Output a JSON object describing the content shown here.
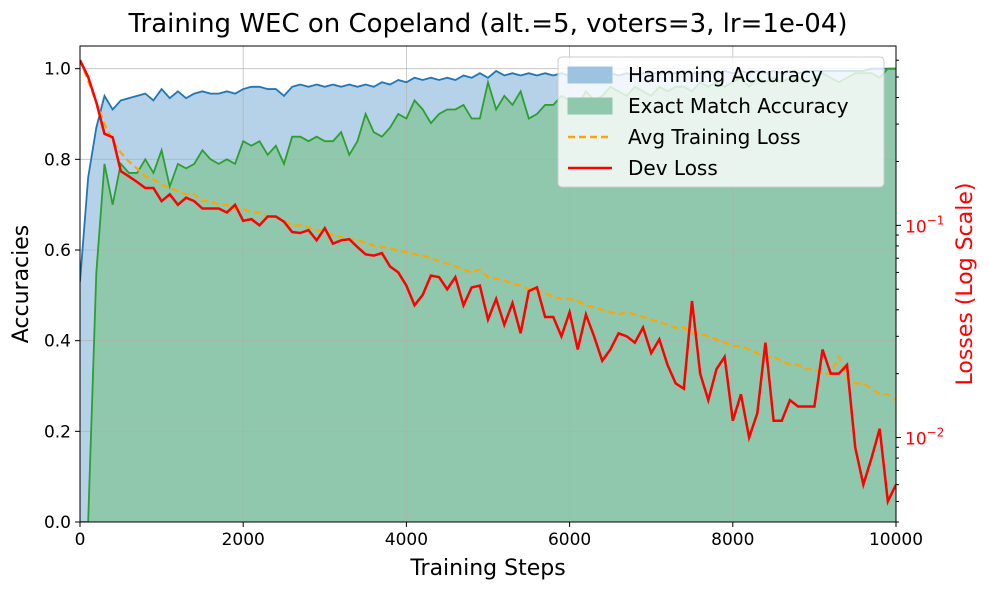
{
  "chart_data": {
    "type": "line",
    "title": "Training WEC on Copeland (alt.=5, voters=3, lr=1e-04)",
    "xlabel": "Training Steps",
    "ylabel": "Accuracies",
    "ylabel_right": "Losses (Log Scale)",
    "xlim": [
      0,
      10000
    ],
    "ylim": [
      0,
      1.05
    ],
    "ylim_right": [
      0.004,
      0.7
    ],
    "y_right_scale": "log",
    "grid": true,
    "legend_position": "top-right",
    "x_ticks": [
      "0",
      "2000",
      "4000",
      "6000",
      "8000",
      "10000"
    ],
    "y_ticks": [
      "0.0",
      "0.2",
      "0.4",
      "0.6",
      "0.8",
      "1.0"
    ],
    "y_right_ticks": [
      {
        "value": 0.1,
        "base": "10",
        "exp": "−1"
      },
      {
        "value": 0.01,
        "base": "10",
        "exp": "−2"
      }
    ],
    "colors": {
      "hamming_line": "#1f77b4",
      "hamming_fill": "#9ec3e0",
      "exact_line": "#2ca02c",
      "exact_fill": "#8fc8ac",
      "train_loss": "#ffa500",
      "dev_loss": "#ff0000",
      "grid": "#b0b0b0",
      "right_axis": "#ff0000"
    },
    "series": [
      {
        "name": "Hamming Accuracy",
        "kind": "fill_line",
        "axis": "left",
        "x": [
          0,
          100,
          200,
          300,
          400,
          500,
          600,
          700,
          800,
          900,
          1000,
          1100,
          1200,
          1300,
          1400,
          1500,
          1600,
          1700,
          1800,
          1900,
          2000,
          2100,
          2200,
          2300,
          2400,
          2500,
          2600,
          2700,
          2800,
          2900,
          3000,
          3100,
          3200,
          3300,
          3400,
          3500,
          3600,
          3700,
          3800,
          3900,
          4000,
          4100,
          4200,
          4300,
          4400,
          4500,
          4600,
          4700,
          4800,
          4900,
          5000,
          5100,
          5200,
          5300,
          5400,
          5500,
          5600,
          5700,
          5800,
          5900,
          6000,
          6100,
          6200,
          6300,
          6400,
          6500,
          6600,
          6700,
          6800,
          6900,
          7000,
          7100,
          7200,
          7300,
          7400,
          7500,
          7600,
          7700,
          7800,
          7900,
          8000,
          8100,
          8200,
          8300,
          8400,
          8500,
          8600,
          8700,
          8800,
          8900,
          9000,
          9100,
          9200,
          9300,
          9400,
          9500,
          9600,
          9700,
          9800,
          9900,
          10000
        ],
        "values": [
          0.53,
          0.76,
          0.87,
          0.94,
          0.91,
          0.93,
          0.935,
          0.94,
          0.945,
          0.93,
          0.955,
          0.935,
          0.95,
          0.935,
          0.945,
          0.95,
          0.945,
          0.945,
          0.95,
          0.945,
          0.955,
          0.96,
          0.96,
          0.955,
          0.955,
          0.94,
          0.96,
          0.965,
          0.96,
          0.965,
          0.96,
          0.965,
          0.96,
          0.965,
          0.96,
          0.965,
          0.96,
          0.97,
          0.965,
          0.975,
          0.97,
          0.98,
          0.975,
          0.98,
          0.975,
          0.98,
          0.975,
          0.985,
          0.98,
          0.99,
          0.98,
          0.995,
          0.985,
          0.99,
          0.985,
          0.99,
          0.985,
          0.99,
          0.985,
          0.99,
          0.985,
          0.99,
          0.985,
          0.99,
          0.985,
          0.99,
          0.985,
          0.99,
          0.985,
          0.99,
          0.99,
          0.99,
          0.99,
          0.99,
          0.995,
          0.99,
          0.99,
          0.995,
          0.99,
          0.995,
          0.99,
          0.995,
          0.99,
          0.995,
          0.99,
          0.995,
          0.99,
          0.995,
          0.99,
          0.995,
          0.995,
          0.995,
          0.995,
          0.995,
          0.995,
          0.995,
          0.995,
          1.0,
          1.0,
          1.0,
          1.0
        ]
      },
      {
        "name": "Exact Match Accuracy",
        "kind": "fill_line",
        "axis": "left",
        "x": [
          0,
          100,
          200,
          300,
          400,
          500,
          600,
          700,
          800,
          900,
          1000,
          1100,
          1200,
          1300,
          1400,
          1500,
          1600,
          1700,
          1800,
          1900,
          2000,
          2100,
          2200,
          2300,
          2400,
          2500,
          2600,
          2700,
          2800,
          2900,
          3000,
          3100,
          3200,
          3300,
          3400,
          3500,
          3600,
          3700,
          3800,
          3900,
          4000,
          4100,
          4200,
          4300,
          4400,
          4500,
          4600,
          4700,
          4800,
          4900,
          5000,
          5100,
          5200,
          5300,
          5400,
          5500,
          5600,
          5700,
          5800,
          5900,
          6000,
          6100,
          6200,
          6300,
          6400,
          6500,
          6600,
          6700,
          6800,
          6900,
          7000,
          7100,
          7200,
          7300,
          7400,
          7500,
          7600,
          7700,
          7800,
          7900,
          8000,
          8100,
          8200,
          8300,
          8400,
          8500,
          8600,
          8700,
          8800,
          8900,
          9000,
          9100,
          9200,
          9300,
          9400,
          9500,
          9600,
          9700,
          9800,
          9900,
          10000
        ],
        "values": [
          0.0,
          0.0,
          0.55,
          0.79,
          0.7,
          0.79,
          0.77,
          0.77,
          0.8,
          0.77,
          0.82,
          0.74,
          0.79,
          0.78,
          0.79,
          0.82,
          0.8,
          0.79,
          0.8,
          0.79,
          0.84,
          0.83,
          0.84,
          0.81,
          0.83,
          0.79,
          0.85,
          0.85,
          0.84,
          0.85,
          0.84,
          0.84,
          0.86,
          0.81,
          0.84,
          0.9,
          0.86,
          0.85,
          0.87,
          0.9,
          0.89,
          0.93,
          0.91,
          0.88,
          0.9,
          0.91,
          0.91,
          0.92,
          0.89,
          0.89,
          0.97,
          0.91,
          0.94,
          0.92,
          0.95,
          0.89,
          0.9,
          0.92,
          0.92,
          0.94,
          0.93,
          0.92,
          0.95,
          0.93,
          0.94,
          0.96,
          0.95,
          0.94,
          0.96,
          0.95,
          0.94,
          0.96,
          0.95,
          0.96,
          0.96,
          0.95,
          0.97,
          0.96,
          0.97,
          0.96,
          0.97,
          0.98,
          0.96,
          0.98,
          0.97,
          0.98,
          0.97,
          0.98,
          0.98,
          0.97,
          0.98,
          0.99,
          0.98,
          0.97,
          0.98,
          0.99,
          0.99,
          0.99,
          0.98,
          1.0,
          1.0
        ]
      },
      {
        "name": "Avg Training Loss",
        "kind": "dashed_line",
        "axis": "right",
        "x": [
          0,
          100,
          200,
          300,
          400,
          500,
          600,
          700,
          800,
          900,
          1000,
          1100,
          1200,
          1300,
          1400,
          1500,
          1600,
          1700,
          1800,
          1900,
          2000,
          2100,
          2200,
          2300,
          2400,
          2500,
          2600,
          2700,
          2800,
          2900,
          3000,
          3100,
          3200,
          3300,
          3400,
          3500,
          3600,
          3700,
          3800,
          3900,
          4000,
          4100,
          4200,
          4300,
          4400,
          4500,
          4600,
          4700,
          4800,
          4900,
          5000,
          5100,
          5200,
          5300,
          5400,
          5500,
          5600,
          5700,
          5800,
          5900,
          6000,
          6100,
          6200,
          6300,
          6400,
          6500,
          6600,
          6700,
          6800,
          6900,
          7000,
          7100,
          7200,
          7300,
          7400,
          7500,
          7600,
          7700,
          7800,
          7900,
          8000,
          8100,
          8200,
          8300,
          8400,
          8500,
          8600,
          8700,
          8800,
          8900,
          9000,
          9100,
          9200,
          9300,
          9400,
          9500,
          9600,
          9700,
          9800,
          9900,
          10000
        ],
        "values": [
          0.6,
          0.48,
          0.38,
          0.3,
          0.25,
          0.22,
          0.2,
          0.185,
          0.17,
          0.165,
          0.155,
          0.15,
          0.145,
          0.14,
          0.14,
          0.13,
          0.13,
          0.125,
          0.125,
          0.12,
          0.12,
          0.115,
          0.115,
          0.11,
          0.11,
          0.105,
          0.1,
          0.1,
          0.098,
          0.095,
          0.093,
          0.09,
          0.088,
          0.086,
          0.085,
          0.083,
          0.08,
          0.079,
          0.078,
          0.076,
          0.075,
          0.073,
          0.072,
          0.07,
          0.068,
          0.066,
          0.064,
          0.062,
          0.06,
          0.062,
          0.057,
          0.056,
          0.055,
          0.053,
          0.052,
          0.05,
          0.049,
          0.048,
          0.046,
          0.045,
          0.045,
          0.044,
          0.042,
          0.041,
          0.04,
          0.039,
          0.038,
          0.039,
          0.038,
          0.037,
          0.036,
          0.035,
          0.034,
          0.033,
          0.033,
          0.031,
          0.031,
          0.03,
          0.029,
          0.028,
          0.027,
          0.027,
          0.026,
          0.025,
          0.024,
          0.024,
          0.023,
          0.022,
          0.022,
          0.021,
          0.021,
          0.02,
          0.02,
          0.024,
          0.019,
          0.018,
          0.018,
          0.017,
          0.016,
          0.016,
          0.015
        ]
      },
      {
        "name": "Dev Loss",
        "kind": "line",
        "axis": "right",
        "x": [
          0,
          100,
          200,
          300,
          400,
          500,
          600,
          700,
          800,
          900,
          1000,
          1100,
          1200,
          1300,
          1400,
          1500,
          1600,
          1700,
          1800,
          1900,
          2000,
          2100,
          2200,
          2300,
          2400,
          2500,
          2600,
          2700,
          2800,
          2900,
          3000,
          3100,
          3200,
          3300,
          3400,
          3500,
          3600,
          3700,
          3800,
          3900,
          4000,
          4100,
          4200,
          4300,
          4400,
          4500,
          4600,
          4700,
          4800,
          4900,
          5000,
          5100,
          5200,
          5300,
          5400,
          5500,
          5600,
          5700,
          5800,
          5900,
          6000,
          6100,
          6200,
          6300,
          6400,
          6500,
          6600,
          6700,
          6800,
          6900,
          7000,
          7100,
          7200,
          7300,
          7400,
          7500,
          7600,
          7700,
          7800,
          7900,
          8000,
          8100,
          8200,
          8300,
          8400,
          8500,
          8600,
          8700,
          8800,
          8900,
          9000,
          9100,
          9200,
          9300,
          9400,
          9500,
          9600,
          9700,
          9800,
          9900,
          10000
        ],
        "values": [
          0.6,
          0.5,
          0.38,
          0.27,
          0.26,
          0.18,
          0.17,
          0.16,
          0.15,
          0.15,
          0.13,
          0.14,
          0.125,
          0.135,
          0.13,
          0.12,
          0.12,
          0.12,
          0.115,
          0.125,
          0.105,
          0.107,
          0.1,
          0.11,
          0.11,
          0.104,
          0.093,
          0.092,
          0.095,
          0.085,
          0.097,
          0.082,
          0.085,
          0.086,
          0.079,
          0.073,
          0.072,
          0.074,
          0.064,
          0.06,
          0.052,
          0.042,
          0.047,
          0.058,
          0.057,
          0.05,
          0.057,
          0.042,
          0.051,
          0.052,
          0.036,
          0.045,
          0.034,
          0.043,
          0.031,
          0.049,
          0.051,
          0.037,
          0.037,
          0.03,
          0.039,
          0.026,
          0.038,
          0.03,
          0.023,
          0.026,
          0.031,
          0.03,
          0.028,
          0.033,
          0.025,
          0.029,
          0.022,
          0.018,
          0.017,
          0.044,
          0.02,
          0.015,
          0.021,
          0.024,
          0.012,
          0.016,
          0.01,
          0.013,
          0.028,
          0.012,
          0.012,
          0.015,
          0.014,
          0.014,
          0.014,
          0.026,
          0.02,
          0.02,
          0.022,
          0.009,
          0.006,
          0.008,
          0.011,
          0.005,
          0.006
        ]
      }
    ]
  }
}
